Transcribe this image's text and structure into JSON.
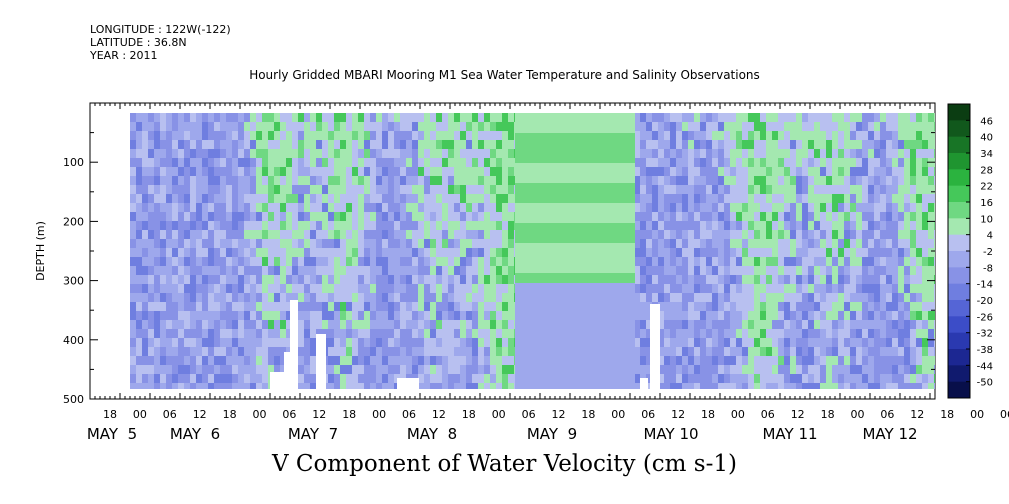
{
  "header": {
    "longitude": "LONGITUDE : 122W(-122)",
    "latitude": "LATITUDE : 36.8N",
    "year": "YEAR : 2011"
  },
  "title": "Hourly Gridded MBARI Mooring M1 Sea Water Temperature and Salinity Observations",
  "chart_data": {
    "type": "heatmap",
    "title": "Hourly Gridded MBARI Mooring M1 Sea Water Temperature and Salinity Observations",
    "variable": "V Component of Water Velocity (cm s-1)",
    "ylabel": "DEPTH (m)",
    "ylim": [
      500,
      0
    ],
    "yticks": [
      100,
      200,
      300,
      400,
      500
    ],
    "x_hour_ticks": [
      "18",
      "00",
      "06",
      "12",
      "18",
      "00",
      "06",
      "12",
      "18",
      "00",
      "06",
      "12",
      "18",
      "00",
      "06",
      "12",
      "18",
      "00",
      "06",
      "12",
      "18",
      "00",
      "06",
      "12",
      "18",
      "00",
      "06",
      "12",
      "18",
      "00",
      "06",
      "12"
    ],
    "date_labels": [
      "MAY  5",
      "MAY  6",
      "MAY  7",
      "MAY  8",
      "MAY  9",
      "MAY 10",
      "MAY 11",
      "MAY 12"
    ],
    "colorbar": {
      "levels": [
        "46",
        "40",
        "34",
        "28",
        "22",
        "16",
        "10",
        "4",
        "-2",
        "-8",
        "-14",
        "-20",
        "-26",
        "-32",
        "-38",
        "-44",
        "-50"
      ],
      "colors": [
        "#0b3d12",
        "#11581c",
        "#187526",
        "#1f9530",
        "#2bb33f",
        "#45c85a",
        "#6fd882",
        "#a4e8b0",
        "#b8c0f0",
        "#9ea8ec",
        "#8892e6",
        "#6f7ee0",
        "#5565d6",
        "#3c4dc8",
        "#2a39b0",
        "#1c2792",
        "#101a6e",
        "#080f4a"
      ]
    }
  }
}
